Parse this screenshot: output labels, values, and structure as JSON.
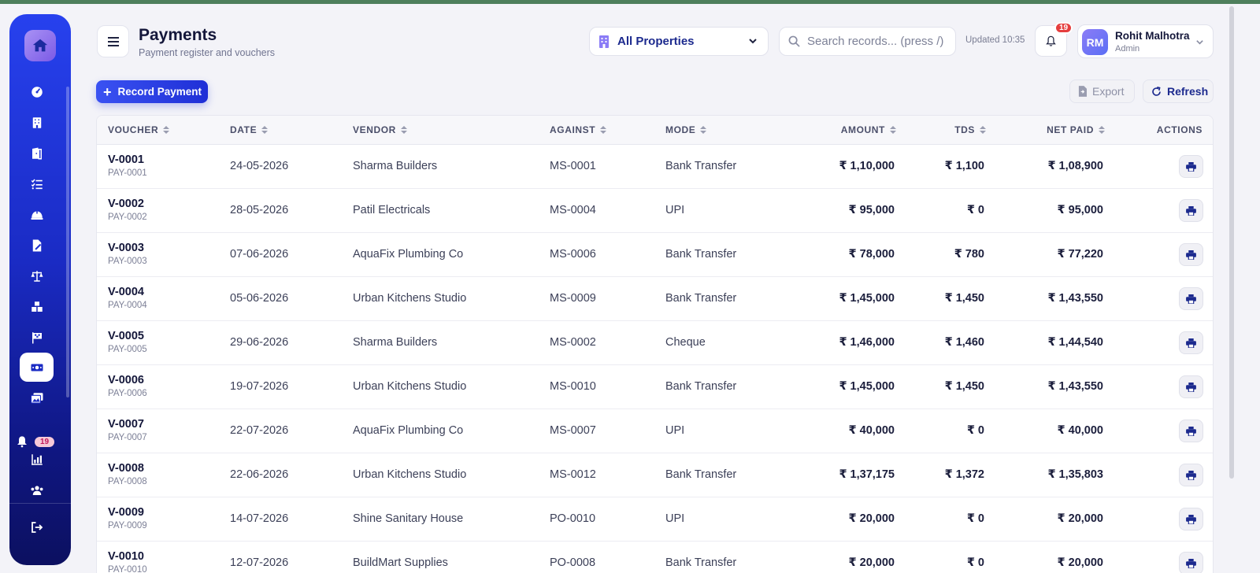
{
  "header": {
    "title": "Payments",
    "subtitle": "Payment register and vouchers",
    "property_select": "All Properties",
    "search_placeholder": "Search records... (press /)",
    "updated": "Updated 10:35",
    "notifications_count": "19"
  },
  "user": {
    "initials": "RM",
    "name": "Rohit Malhotra",
    "role": "Admin"
  },
  "sidebar": {
    "notifications_badge": "19"
  },
  "toolbar": {
    "record_label": "Record Payment",
    "export_label": "Export",
    "refresh_label": "Refresh"
  },
  "table": {
    "columns": [
      "VOUCHER",
      "DATE",
      "VENDOR",
      "AGAINST",
      "MODE",
      "AMOUNT",
      "TDS",
      "NET PAID",
      "ACTIONS"
    ],
    "rows": [
      {
        "voucher": "V-0001",
        "ref": "PAY-0001",
        "date": "24-05-2026",
        "vendor": "Sharma Builders",
        "against": "MS-0001",
        "mode": "Bank Transfer",
        "amount": "₹ 1,10,000",
        "tds": "₹ 1,100",
        "net": "₹ 1,08,900"
      },
      {
        "voucher": "V-0002",
        "ref": "PAY-0002",
        "date": "28-05-2026",
        "vendor": "Patil Electricals",
        "against": "MS-0004",
        "mode": "UPI",
        "amount": "₹ 95,000",
        "tds": "₹ 0",
        "net": "₹ 95,000"
      },
      {
        "voucher": "V-0003",
        "ref": "PAY-0003",
        "date": "07-06-2026",
        "vendor": "AquaFix Plumbing Co",
        "against": "MS-0006",
        "mode": "Bank Transfer",
        "amount": "₹ 78,000",
        "tds": "₹ 780",
        "net": "₹ 77,220"
      },
      {
        "voucher": "V-0004",
        "ref": "PAY-0004",
        "date": "05-06-2026",
        "vendor": "Urban Kitchens Studio",
        "against": "MS-0009",
        "mode": "Bank Transfer",
        "amount": "₹ 1,45,000",
        "tds": "₹ 1,450",
        "net": "₹ 1,43,550"
      },
      {
        "voucher": "V-0005",
        "ref": "PAY-0005",
        "date": "29-06-2026",
        "vendor": "Sharma Builders",
        "against": "MS-0002",
        "mode": "Cheque",
        "amount": "₹ 1,46,000",
        "tds": "₹ 1,460",
        "net": "₹ 1,44,540"
      },
      {
        "voucher": "V-0006",
        "ref": "PAY-0006",
        "date": "19-07-2026",
        "vendor": "Urban Kitchens Studio",
        "against": "MS-0010",
        "mode": "Bank Transfer",
        "amount": "₹ 1,45,000",
        "tds": "₹ 1,450",
        "net": "₹ 1,43,550"
      },
      {
        "voucher": "V-0007",
        "ref": "PAY-0007",
        "date": "22-07-2026",
        "vendor": "AquaFix Plumbing Co",
        "against": "MS-0007",
        "mode": "UPI",
        "amount": "₹ 40,000",
        "tds": "₹ 0",
        "net": "₹ 40,000"
      },
      {
        "voucher": "V-0008",
        "ref": "PAY-0008",
        "date": "22-06-2026",
        "vendor": "Urban Kitchens Studio",
        "against": "MS-0012",
        "mode": "Bank Transfer",
        "amount": "₹ 1,37,175",
        "tds": "₹ 1,372",
        "net": "₹ 1,35,803"
      },
      {
        "voucher": "V-0009",
        "ref": "PAY-0009",
        "date": "14-07-2026",
        "vendor": "Shine Sanitary House",
        "against": "PO-0010",
        "mode": "UPI",
        "amount": "₹ 20,000",
        "tds": "₹ 0",
        "net": "₹ 20,000"
      },
      {
        "voucher": "V-0010",
        "ref": "PAY-0010",
        "date": "12-07-2026",
        "vendor": "BuildMart Supplies",
        "against": "PO-0008",
        "mode": "Bank Transfer",
        "amount": "₹ 20,000",
        "tds": "₹ 0",
        "net": "₹ 20,000"
      }
    ]
  }
}
